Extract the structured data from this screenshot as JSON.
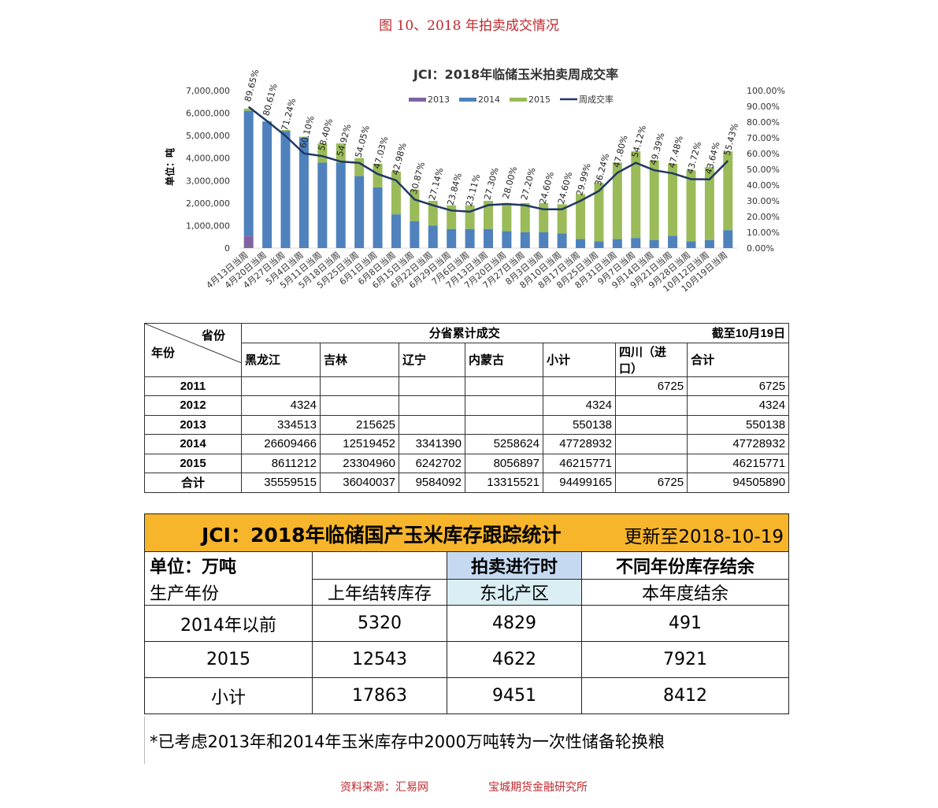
{
  "figure_title": "图 10、2018 年拍卖成交情况",
  "chart_data": {
    "type": "combo",
    "title": "JCI：2018年临储玉米拍卖周成交率",
    "y_label": "单位：吨",
    "stacked": true,
    "categories": [
      "4月13日当周",
      "4月20日当周",
      "4月27日当周",
      "5月4日当周",
      "5月11日当周",
      "5月18日当周",
      "5月25日当周",
      "6月1日当周",
      "6月8日当周",
      "6月15日当周",
      "6月22日当周",
      "6月29日当周",
      "7月6日当周",
      "7月13日当周",
      "7月20日当周",
      "7月27日当周",
      "8月3日当周",
      "8月10日当周",
      "8月17日当周",
      "8月25日当周",
      "8月31日当周",
      "9月7日当周",
      "9月14日当周",
      "9月21日当周",
      "9月28日当周",
      "10月12日当周",
      "10月19日当周"
    ],
    "series": [
      {
        "name": "2013",
        "color": "#8064a2",
        "values": [
          550000,
          0,
          0,
          0,
          0,
          0,
          0,
          0,
          0,
          0,
          0,
          0,
          0,
          0,
          0,
          0,
          0,
          0,
          0,
          0,
          0,
          0,
          0,
          0,
          0,
          0,
          0
        ]
      },
      {
        "name": "2014",
        "color": "#4f81bd",
        "values": [
          5550000,
          5600000,
          5200000,
          4900000,
          3800000,
          3800000,
          3200000,
          2700000,
          1500000,
          1200000,
          1000000,
          850000,
          850000,
          850000,
          750000,
          700000,
          700000,
          650000,
          400000,
          300000,
          400000,
          450000,
          350000,
          550000,
          300000,
          350000,
          800000
        ]
      },
      {
        "name": "2015",
        "color": "#9bbb59",
        "values": [
          100000,
          50000,
          50000,
          50000,
          850000,
          850000,
          800000,
          1050000,
          1900000,
          1400000,
          1100000,
          1050000,
          1050000,
          1250000,
          1250000,
          1300000,
          1300000,
          1300000,
          2000000,
          2600000,
          3400000,
          3850000,
          3550000,
          3200000,
          3150000,
          3250000,
          3500000
        ]
      },
      {
        "name": "周成交率",
        "color": "#1f3864",
        "axis": "y2",
        "line": true,
        "values": [
          89.65,
          80.61,
          71.24,
          60.1,
          58.4,
          54.92,
          54.05,
          47.03,
          42.98,
          30.87,
          27.14,
          23.84,
          23.11,
          27.3,
          28.0,
          27.2,
          24.6,
          24.6,
          29.99,
          36.24,
          47.8,
          54.12,
          49.39,
          47.48,
          43.72,
          43.64,
          55.43
        ],
        "value_labels": [
          "89.65%",
          "80.61%",
          "71.24%",
          "60.10%",
          "58.40%",
          "54.92%",
          "54.05%",
          "47.03%",
          "42.98%",
          "30.87%",
          "27.14%",
          "23.84%",
          "23.11%",
          "27.30%",
          "28.00%",
          "27.20%",
          "24.60%",
          "24.60%",
          "29.99%",
          "36.24%",
          "47.80%",
          "54.12%",
          "49.39%",
          "47.48%",
          "43.72%",
          "43.64%",
          "55.43%"
        ]
      }
    ],
    "ylim": [
      0,
      7000000
    ],
    "yticks": [
      {
        "value": 0,
        "label": "0"
      },
      {
        "value": 1000000,
        "label": "1,000,000"
      },
      {
        "value": 2000000,
        "label": "2,000,000"
      },
      {
        "value": 3000000,
        "label": "3,000,000"
      },
      {
        "value": 4000000,
        "label": "4,000,000"
      },
      {
        "value": 5000000,
        "label": "5,000,000"
      },
      {
        "value": 6000000,
        "label": "6,000,000"
      },
      {
        "value": 7000000,
        "label": "7,000,000"
      }
    ],
    "y2lim": [
      0,
      100
    ],
    "y2ticks": [
      {
        "value": 0,
        "label": "0.00%"
      },
      {
        "value": 10,
        "label": "10.00%"
      },
      {
        "value": 20,
        "label": "20.00%"
      },
      {
        "value": 30,
        "label": "30.00%"
      },
      {
        "value": 40,
        "label": "40.00%"
      },
      {
        "value": 50,
        "label": "50.00%"
      },
      {
        "value": 60,
        "label": "60.00%"
      },
      {
        "value": 70,
        "label": "70.00%"
      },
      {
        "value": 80,
        "label": "80.00%"
      },
      {
        "value": 90,
        "label": "90.00%"
      },
      {
        "value": 100,
        "label": "100.00%"
      }
    ]
  },
  "table1": {
    "corner_top": "省份",
    "corner_bottom": "年份",
    "group_header": "分省累计成交",
    "date_note": "截至10月19日",
    "columns": [
      "黑龙江",
      "吉林",
      "辽宁",
      "内蒙古",
      "小计",
      "四川（进口）",
      "合计"
    ],
    "rows": [
      {
        "year": "2011",
        "cells": [
          null,
          null,
          null,
          null,
          null,
          6725,
          6725
        ]
      },
      {
        "year": "2012",
        "cells": [
          4324,
          null,
          null,
          null,
          4324,
          null,
          4324
        ]
      },
      {
        "year": "2013",
        "cells": [
          334513,
          215625,
          null,
          null,
          550138,
          null,
          550138
        ]
      },
      {
        "year": "2014",
        "cells": [
          26609466,
          12519452,
          3341390,
          5258624,
          47728932,
          null,
          47728932
        ]
      },
      {
        "year": "2015",
        "cells": [
          8611212,
          23304960,
          6242702,
          8056897,
          46215771,
          null,
          46215771
        ]
      },
      {
        "year": "合计",
        "cells": [
          35559515,
          36040037,
          9584092,
          13315521,
          94499165,
          6725,
          94505890
        ]
      }
    ]
  },
  "table2": {
    "title": "JCI：2018年临储国产玉米库存跟踪统计",
    "updated": "更新至2018-10-19",
    "unit": "单位：万吨",
    "group1": "拍卖进行时",
    "group2": "不同年份库存结余",
    "columns": [
      "生产年份",
      "上年结转库存",
      "东北产区",
      "本年度结余"
    ],
    "rows": [
      [
        "2014年以前",
        5320,
        4829,
        491
      ],
      [
        "2015",
        12543,
        4622,
        7921
      ],
      [
        "小计",
        17863,
        9451,
        8412
      ]
    ],
    "note": "*已考虑2013年和2014年玉米库存中2000万吨转为一次性储备轮换粮"
  },
  "footer": {
    "source": "资料来源：汇易网",
    "institute": "宝城期货金融研究所"
  }
}
